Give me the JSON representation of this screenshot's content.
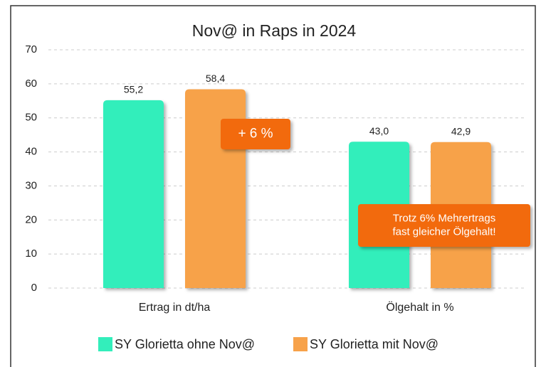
{
  "chart_data": {
    "type": "bar",
    "title": "Nov@ in Raps in 2024",
    "categories": [
      "Ertrag in dt/ha",
      "Ölgehalt in %"
    ],
    "series": [
      {
        "name": "SY Glorietta ohne Nov@",
        "color": "#33eebb",
        "values": [
          55.2,
          43.0
        ],
        "value_labels": [
          "55,2",
          "43,0"
        ]
      },
      {
        "name": "SY Glorietta mit Nov@",
        "color": "#f7a24a",
        "values": [
          58.4,
          42.9
        ],
        "value_labels": [
          "58,4",
          "42,9"
        ]
      }
    ],
    "ylim": [
      0,
      70
    ],
    "yticks": [
      0,
      10,
      20,
      30,
      40,
      50,
      60,
      70
    ],
    "grid": true,
    "legend": "bottom",
    "annotations": [
      {
        "lines": [
          "+ 6 %"
        ],
        "color": "#f26a10"
      },
      {
        "lines": [
          "Trotz 6% Mehrertrags",
          "fast gleicher Ölgehalt!"
        ],
        "color": "#f26a10"
      }
    ]
  }
}
